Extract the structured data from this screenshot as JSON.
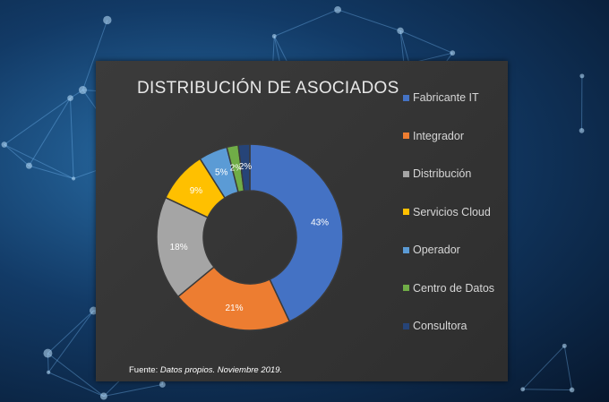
{
  "chart_data": {
    "type": "pie",
    "title": "DISTRIBUCIÓN DE ASOCIADOS",
    "categories": [
      "Fabricante IT",
      "Integrador",
      "Distribución",
      "Servicios Cloud",
      "Operador",
      "Centro de Datos",
      "Consultora"
    ],
    "values": [
      43,
      21,
      18,
      9,
      5,
      2,
      2
    ],
    "data_labels": [
      "43%",
      "21%",
      "18%",
      "9%",
      "5%",
      "2%",
      "2%"
    ],
    "colors": [
      "#4472c4",
      "#ed7d31",
      "#a5a5a5",
      "#ffc000",
      "#5b9bd5",
      "#70ad47",
      "#264478"
    ],
    "legend_position": "right",
    "donut": true
  },
  "source": {
    "prefix": "Fuente:",
    "text": "Datos propios. Noviembre 2019."
  }
}
